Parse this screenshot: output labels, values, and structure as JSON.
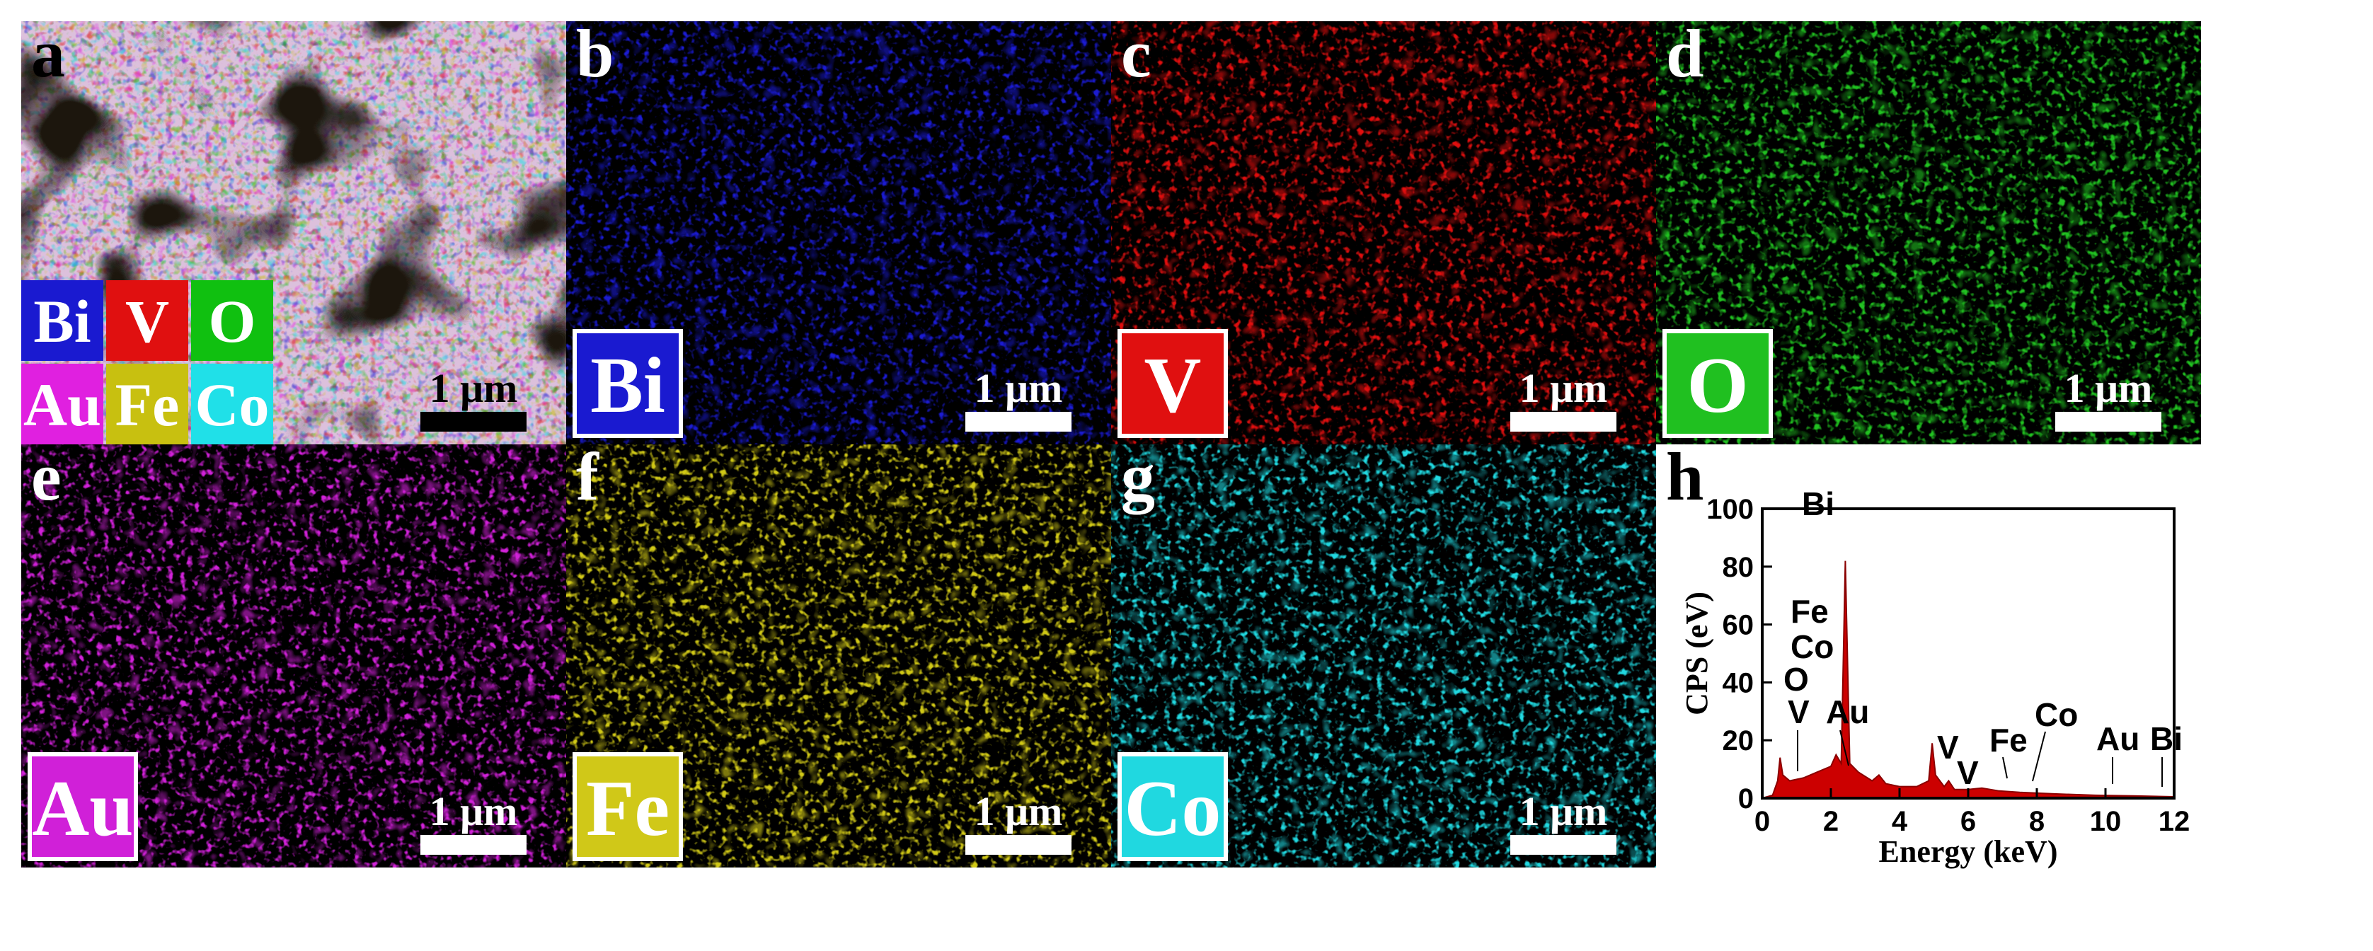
{
  "panels": [
    {
      "letter": "a",
      "elements": [
        {
          "name": "Bi",
          "color": "#1a1ad0"
        },
        {
          "name": "V",
          "color": "#e01010"
        },
        {
          "name": "O",
          "color": "#10c010"
        },
        {
          "name": "Au",
          "color": "#e020e0"
        },
        {
          "name": "Fe",
          "color": "#c8c010"
        },
        {
          "name": "Co",
          "color": "#20e0e8"
        }
      ],
      "scale_bar": "1 μm"
    },
    {
      "letter": "b",
      "element": "Bi",
      "color": "#1a1ad0",
      "scale_bar": "1 μm"
    },
    {
      "letter": "c",
      "element": "V",
      "color": "#e01010",
      "scale_bar": "1 μm"
    },
    {
      "letter": "d",
      "element": "O",
      "color": "#20c020",
      "scale_bar": "1 μm"
    },
    {
      "letter": "e",
      "element": "Au",
      "color": "#d020d8",
      "scale_bar": "1 μm"
    },
    {
      "letter": "f",
      "element": "Fe",
      "color": "#d0c818",
      "scale_bar": "1 μm"
    },
    {
      "letter": "g",
      "element": "Co",
      "color": "#20d8e0",
      "scale_bar": "1 μm"
    },
    {
      "letter": "h"
    }
  ],
  "chart_data": {
    "type": "area",
    "x_label": "Energy (keV)",
    "y_label": "CPS (eV)",
    "x": [
      0,
      0.3,
      0.45,
      0.52,
      0.6,
      0.8,
      1.2,
      1.6,
      2.0,
      2.15,
      2.3,
      2.42,
      2.55,
      2.8,
      3.2,
      3.4,
      3.6,
      4.0,
      4.5,
      4.85,
      4.95,
      5.05,
      5.3,
      5.43,
      5.6,
      6.0,
      6.4,
      6.9,
      7.5,
      8.5,
      9.7,
      10.8,
      12
    ],
    "values": [
      0,
      1,
      6,
      14,
      8,
      6,
      7,
      9,
      11,
      15,
      12,
      82,
      12,
      9,
      6,
      8,
      5,
      4,
      4,
      6,
      19,
      8,
      4,
      6,
      3,
      3,
      3.5,
      2.5,
      2,
      1.5,
      1,
      0.8,
      0.5
    ],
    "color": "#cc0000",
    "xlim": [
      0,
      12
    ],
    "xticks": [
      0,
      2,
      4,
      6,
      8,
      10,
      12
    ],
    "ylim": [
      0,
      100
    ],
    "yticks": [
      0,
      20,
      40,
      60,
      80,
      100
    ],
    "annotations": [
      "Bi",
      "Fe",
      "Co",
      "O",
      "V",
      "Au",
      "V",
      "V",
      "Fe",
      "Co",
      "Au",
      "Bi"
    ]
  }
}
